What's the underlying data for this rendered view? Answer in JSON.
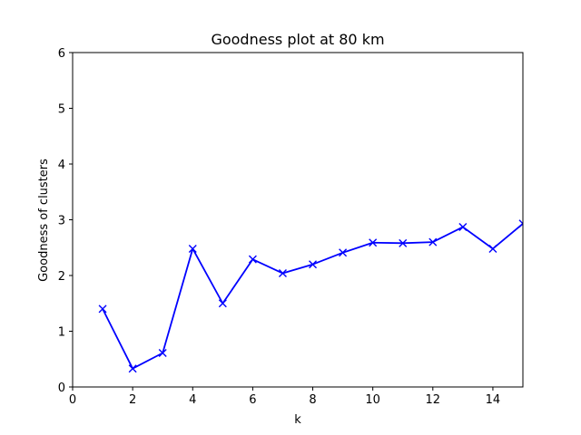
{
  "chart_data": {
    "type": "line",
    "title": "Goodness plot at 80 km",
    "xlabel": "k",
    "ylabel": "Goodness of clusters",
    "xlim": [
      0,
      15
    ],
    "ylim": [
      0,
      6
    ],
    "xticks": [
      "0",
      "2",
      "4",
      "6",
      "8",
      "10",
      "12",
      "14"
    ],
    "yticks": [
      "0",
      "1",
      "2",
      "3",
      "4",
      "5",
      "6"
    ],
    "grid": false,
    "series": [
      {
        "color": "#0000ff",
        "marker": "x",
        "x": [
          1,
          2,
          3,
          4,
          5,
          6,
          7,
          8,
          9,
          10,
          11,
          12,
          13,
          14,
          15
        ],
        "y": [
          1.4,
          0.33,
          0.61,
          2.48,
          1.5,
          2.29,
          2.04,
          2.2,
          2.41,
          2.59,
          2.58,
          2.6,
          2.87,
          2.48,
          2.93
        ]
      }
    ]
  }
}
